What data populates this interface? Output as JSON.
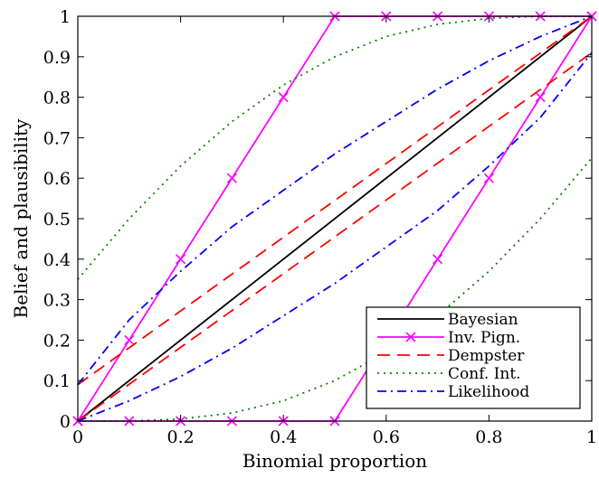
{
  "chart_data": {
    "type": "line",
    "title": "",
    "xlabel": "Binomial proportion",
    "ylabel": "Belief and plausibility",
    "xlim": [
      0,
      1
    ],
    "ylim": [
      0,
      1
    ],
    "xticks": [
      0,
      0.2,
      0.4,
      0.6,
      0.8,
      1
    ],
    "xtick_labels": [
      "0",
      "0.2",
      "0.4",
      "0.6",
      "0.8",
      "1"
    ],
    "yticks": [
      0,
      0.1,
      0.2,
      0.3,
      0.4,
      0.5,
      0.6,
      0.7,
      0.8,
      0.9,
      1
    ],
    "ytick_labels": [
      "0",
      "0.1",
      "0.2",
      "0.3",
      "0.4",
      "0.5",
      "0.6",
      "0.7",
      "0.8",
      "0.9",
      "1"
    ],
    "grid": false,
    "legend_position": "bottom-right",
    "series": [
      {
        "name": "Bayesian",
        "color": "#000000",
        "style": "solid",
        "curves": [
          {
            "x": [
              0,
              1
            ],
            "y": [
              0,
              1
            ]
          }
        ]
      },
      {
        "name": "Inv. Pign.",
        "color": "#ff00ff",
        "style": "solid-x",
        "curves": [
          {
            "x": [
              0,
              0.1,
              0.2,
              0.3,
              0.4,
              0.5,
              0.6,
              0.7,
              0.8,
              0.9,
              1
            ],
            "y": [
              0,
              0.2,
              0.4,
              0.6,
              0.8,
              1,
              1,
              1,
              1,
              1,
              1
            ]
          },
          {
            "x": [
              0,
              0.1,
              0.2,
              0.3,
              0.4,
              0.5,
              0.6,
              0.7,
              0.8,
              0.9,
              1
            ],
            "y": [
              0,
              0,
              0,
              0,
              0,
              0,
              0.2,
              0.4,
              0.6,
              0.8,
              1
            ]
          }
        ]
      },
      {
        "name": "Dempster",
        "color": "#ff0000",
        "style": "dashed",
        "curves": [
          {
            "x": [
              0,
              1
            ],
            "y": [
              0.09,
              1
            ]
          },
          {
            "x": [
              0,
              1
            ],
            "y": [
              0,
              0.91
            ]
          }
        ]
      },
      {
        "name": "Conf. Int.",
        "color": "#008000",
        "style": "dotted",
        "curves": [
          {
            "x": [
              0,
              0.1,
              0.2,
              0.3,
              0.4,
              0.5,
              0.6,
              0.7,
              0.8,
              0.9,
              1
            ],
            "y": [
              0.35,
              0.5,
              0.63,
              0.74,
              0.83,
              0.9,
              0.95,
              0.98,
              0.995,
              1,
              1
            ]
          },
          {
            "x": [
              0,
              0.1,
              0.2,
              0.3,
              0.4,
              0.5,
              0.6,
              0.7,
              0.8,
              0.9,
              1
            ],
            "y": [
              0,
              0,
              0.005,
              0.02,
              0.05,
              0.1,
              0.17,
              0.26,
              0.37,
              0.5,
              0.65
            ]
          }
        ]
      },
      {
        "name": "Likelihood",
        "color": "#0000ff",
        "style": "dashdot",
        "curves": [
          {
            "x": [
              0,
              0.1,
              0.2,
              0.3,
              0.4,
              0.5,
              0.6,
              0.7,
              0.8,
              0.9,
              1
            ],
            "y": [
              0.09,
              0.25,
              0.37,
              0.48,
              0.57,
              0.66,
              0.74,
              0.82,
              0.89,
              0.95,
              1
            ]
          },
          {
            "x": [
              0,
              0.1,
              0.2,
              0.3,
              0.4,
              0.5,
              0.6,
              0.7,
              0.8,
              0.9,
              1
            ],
            "y": [
              0,
              0.05,
              0.11,
              0.18,
              0.26,
              0.34,
              0.43,
              0.52,
              0.63,
              0.75,
              0.91
            ]
          }
        ]
      }
    ]
  }
}
